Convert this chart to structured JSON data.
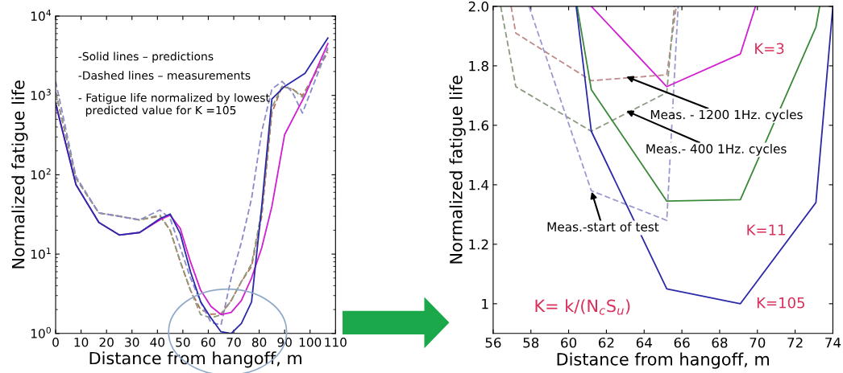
{
  "chart_data": [
    {
      "type": "line",
      "xlabel": "Distance from hangoff, m",
      "ylabel": "Normalized fatigue life",
      "log": true,
      "xlim": [
        0,
        110
      ],
      "xticks": [
        0,
        10,
        20,
        30,
        40,
        50,
        60,
        70,
        80,
        90,
        100,
        110
      ],
      "ylim": [
        1,
        10000
      ],
      "yticks": [
        {
          "value": 1,
          "label": "10$^{0}$"
        },
        {
          "value": 10,
          "label": "10$^{1}$"
        },
        {
          "value": 100,
          "label": "10$^{2}$"
        },
        {
          "value": 1000,
          "label": "10$^{3}$"
        },
        {
          "value": 10000,
          "label": "10$^{4}$"
        }
      ],
      "grid": false,
      "legend": false,
      "series": [
        {
          "color": "#b5705a",
          "line_style": "dashed",
          "x": [
            0,
            8,
            17,
            25,
            33,
            41,
            45,
            49,
            53,
            57,
            61,
            65,
            69,
            73,
            77,
            81,
            85,
            89,
            93,
            97,
            107
          ],
          "values": [
            1100,
            90,
            33,
            30,
            27,
            30,
            20,
            8,
            3.5,
            2.0,
            1.75,
            1.77,
            2.6,
            4.5,
            7,
            30,
            600,
            1300,
            1200,
            1000,
            3500
          ]
        },
        {
          "color": "#8a9a7a",
          "line_style": "dashed",
          "x": [
            0,
            8,
            17,
            25,
            33,
            41,
            45,
            49,
            53,
            57,
            61,
            65,
            69,
            73,
            77,
            81,
            85,
            89,
            93,
            97,
            107
          ],
          "values": [
            1100,
            90,
            33,
            30,
            27,
            31,
            20,
            8,
            3.5,
            1.73,
            1.58,
            1.71,
            2.6,
            4.5,
            7.5,
            35,
            700,
            1300,
            1200,
            950,
            3800
          ]
        },
        {
          "color": "#8a8ac8",
          "line_style": "dashed",
          "x": [
            0,
            8,
            17,
            25,
            33,
            41,
            45,
            49,
            53,
            57,
            61,
            65,
            69,
            73,
            77,
            81,
            85,
            89,
            93,
            97,
            107
          ],
          "values": [
            1500,
            95,
            33,
            30,
            27,
            36,
            28,
            12,
            5,
            2.5,
            1.38,
            1.28,
            5,
            14,
            50,
            350,
            1200,
            1500,
            1100,
            600,
            4000
          ]
        },
        {
          "color": "#d020d0",
          "line_style": "solid",
          "x": [
            0,
            8,
            17,
            25,
            33,
            41,
            45,
            49,
            53,
            57,
            61,
            65,
            69,
            73,
            77,
            81,
            85,
            90,
            98,
            107
          ],
          "values": [
            780,
            75,
            25,
            17.4,
            18.7,
            27,
            31,
            21,
            8,
            3.5,
            2.2,
            1.73,
            1.84,
            2.6,
            5,
            12,
            40,
            320,
            1000,
            4500
          ]
        },
        {
          "color": "#2a2aa8",
          "line_style": "solid",
          "x": [
            0,
            8,
            17,
            25,
            33,
            41,
            45,
            49,
            53,
            57,
            61,
            65,
            69,
            73,
            77,
            81,
            85,
            90,
            98,
            107
          ],
          "values": [
            800,
            75,
            25,
            17.4,
            18.7,
            28,
            32,
            18,
            6,
            2.5,
            1.58,
            1.05,
            1.0,
            1.34,
            2.5,
            40,
            900,
            1300,
            1900,
            5300
          ]
        }
      ],
      "annotations": [
        "-Solid lines – predictions",
        "-Dashed lines – measurements",
        "- Fatigue life normalized by lowest\n  predicted value for K =105"
      ]
    },
    {
      "type": "line",
      "xlabel": "Distance from hangoff, m",
      "ylabel": "Normalized fatigue life",
      "xlim": [
        56,
        74
      ],
      "xticks": [
        56,
        58,
        60,
        62,
        64,
        66,
        68,
        70,
        72,
        74
      ],
      "ylim": [
        0.9,
        2.0
      ],
      "yticks": [
        1,
        1.2,
        1.4,
        1.6,
        1.8,
        {
          "value": 2.0,
          "label": "2.0"
        }
      ],
      "grid": false,
      "legend": false,
      "series": [
        {
          "color": "#c08a8a",
          "line_style": "dashed",
          "x": [
            56.95,
            57.2,
            61.2,
            65.2,
            65.7
          ],
          "values": [
            2.0,
            1.91,
            1.75,
            1.77,
            2.0
          ]
        },
        {
          "color": "#8a9a80",
          "line_style": "dashed",
          "x": [
            56.4,
            57.2,
            61.2,
            65.2,
            65.6
          ],
          "values": [
            2.0,
            1.73,
            1.58,
            1.71,
            2.0
          ]
        },
        {
          "color": "#9a9ad0",
          "line_style": "dashed",
          "x": [
            57.9,
            61.2,
            65.2,
            65.8
          ],
          "values": [
            2.0,
            1.38,
            1.28,
            2.0
          ]
        },
        {
          "color": "#d020d0",
          "line_style": "solid",
          "x": [
            61.2,
            65.2,
            69.1,
            69.9
          ],
          "values": [
            2.0,
            1.73,
            1.84,
            2.0
          ]
        },
        {
          "color": "#3a8a3a",
          "line_style": "solid",
          "x": [
            60.45,
            61.2,
            65.2,
            69.1,
            73.1,
            73.3
          ],
          "values": [
            2.0,
            1.72,
            1.345,
            1.35,
            1.93,
            2.0
          ]
        },
        {
          "color": "#2a2aa8",
          "line_style": "solid",
          "x": [
            60.4,
            61.2,
            65.2,
            69.1,
            73.1,
            74
          ],
          "values": [
            2.0,
            1.58,
            1.05,
            1.0,
            1.34,
            2.0
          ]
        }
      ],
      "annotations": [
        {
          "text": "K=3",
          "x": 69.1,
          "y": 1.84
        },
        {
          "text": "K=11",
          "x": 69.1,
          "y": 1.35
        },
        {
          "text": "K=105",
          "x": 69.1,
          "y": 1.0
        },
        {
          "text": "Meas. - 1200 1Hz. cycles",
          "x": 63,
          "y": 1.765
        },
        {
          "text": "Meas.- 400 1Hz. cycles",
          "x": 63,
          "y": 1.65
        },
        {
          "text": "Meas.-start of test",
          "x": 61.2,
          "y": 1.38
        },
        "K= k/(N$_{c}$S$_{u}$)"
      ]
    }
  ]
}
